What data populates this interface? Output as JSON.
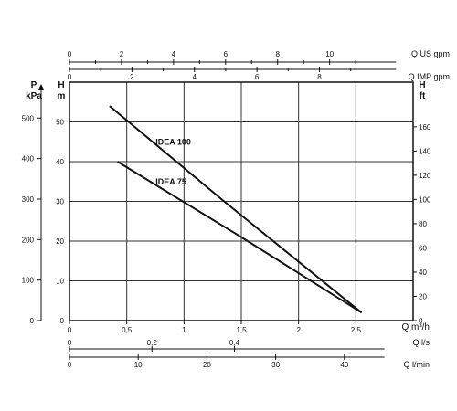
{
  "chart_data": {
    "type": "line",
    "x_unit_label": "Q m³/h",
    "y_unit_label_left": "H",
    "y_unit_label_left_unit": "m",
    "p_label": "P",
    "p_unit": "kPa",
    "ft_label": "H",
    "ft_unit": "ft",
    "xlim": [
      0,
      3.0
    ],
    "ylim": [
      0,
      60
    ],
    "grid": true,
    "x_ticks": [
      {
        "v": 0,
        "label": "0"
      },
      {
        "v": 0.5,
        "label": "0,5"
      },
      {
        "v": 1,
        "label": "1"
      },
      {
        "v": 1.5,
        "label": "1,5"
      },
      {
        "v": 2,
        "label": "2"
      },
      {
        "v": 2.5,
        "label": "2,5"
      }
    ],
    "y_ticks_m": [
      0,
      10,
      20,
      30,
      40,
      50
    ],
    "y_ticks_kpa": [
      0,
      100,
      200,
      300,
      400,
      500
    ],
    "y_ticks_ft": [
      0,
      20,
      40,
      60,
      80,
      100,
      120,
      140,
      160
    ],
    "series": [
      {
        "name": "IDEA 100",
        "points": [
          [
            0.35,
            54
          ],
          [
            1.35,
            30
          ],
          [
            2.55,
            2
          ]
        ],
        "label_at": [
          0.72,
          44.3
        ]
      },
      {
        "name": "IDEA 75",
        "points": [
          [
            0.42,
            40
          ],
          [
            1.5,
            21
          ],
          [
            2.55,
            2
          ]
        ],
        "label_at": [
          0.72,
          34.3
        ]
      }
    ],
    "top_axes": [
      {
        "label": "Q US gpm",
        "per_m3h": 4.403,
        "ticks": [
          0,
          2,
          4,
          6,
          8,
          10
        ]
      },
      {
        "label": "Q IMP gpm",
        "per_m3h": 3.666,
        "ticks": [
          0,
          2,
          4,
          6,
          8
        ]
      }
    ],
    "bottom_axes": [
      {
        "label": "Q l/s",
        "per_m3h": 0.2778,
        "ticks": [
          {
            "v": 0,
            "label": "0"
          },
          {
            "v": 0.2,
            "label": "0,2"
          },
          {
            "v": 0.4,
            "label": "0,4"
          }
        ]
      },
      {
        "label": "Q l/min",
        "per_m3h": 16.667,
        "ticks": [
          {
            "v": 0,
            "label": "0"
          },
          {
            "v": 10,
            "label": "10"
          },
          {
            "v": 20,
            "label": "20"
          },
          {
            "v": 30,
            "label": "30"
          },
          {
            "v": 40,
            "label": "40"
          }
        ]
      }
    ]
  }
}
